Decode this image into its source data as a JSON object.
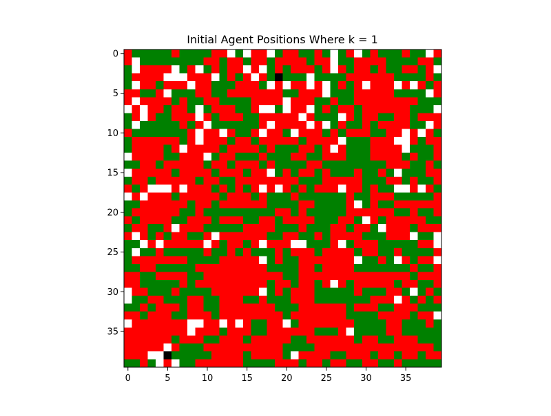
{
  "chart_data": {
    "type": "heatmap",
    "title": "Initial Agent Positions Where k = 1",
    "xlabel": "",
    "ylabel": "",
    "grid": false,
    "rows": 40,
    "cols": 40,
    "x_ticks": [
      "0",
      "5",
      "10",
      "15",
      "20",
      "25",
      "30",
      "35"
    ],
    "y_ticks": [
      "0",
      "5",
      "10",
      "15",
      "20",
      "25",
      "30",
      "35"
    ],
    "xlim": [
      -0.5,
      39.5
    ],
    "ylim": [
      39.5,
      -0.5
    ],
    "legend": "none",
    "colors": {
      "R": "#ff0000",
      "G": "#008000",
      "W": "#ffffff",
      "B": "#000000"
    },
    "grid_rows": [
      "RGGGGGRGGGGRRWGWRRWGRRGGRGWGRWGRGGGRGGWR",
      "RWGGGGGGGGRRGRRGRRGRRRRGRRWGGRRRRGGGGRRG",
      "GWRRRRWGRWGRGRRWRWGRGRRRGRWRGRRGRGGRRGRW",
      "GRRRRWWWRRRWGRGRWRGBGGGWGGGGRRRRRRGGGGRG",
      "GWRRGRRRWRRGGGRRRGWRWRRWRWGRGRWRRRWRWRGR",
      "RRGGRWGGGRRGGRRRRRRRGGRRRWGGGRRRRRGGGGWR",
      "RWRRRRGRGGRRGGGGRRRRWRRRGGRGGRRRRRRRRGGG",
      "WRWRRGRRGWGRRRGGRWWGWRRWGRGRRGRRRRRRGGGW",
      "GRWRGGRRRWRGRRRGGRRRRRWRGGGWRGRRGGRRGRRR",
      "GWGGGGGRGRWGGGGGGRWRRRRWRWGRGGRGRRRRGGWR",
      "RGGGGGGGRWRRWRGGRWRRGWRRRGRGRRRGGRRWRWRG",
      "GRRRRRRGRWRRRGRRGRRRRRGRRRRWGGGRRRWWRGRR",
      "GRRRRGRWRRRRGRRRRGRGGGRRGRWRGGGRRRRWGGGR",
      "WRRRRGGRRRWGRRGGGRGGGRRGGRRRGGGRRRRGRGGR",
      "GGRRGRRRRRGRRGRRRGRGGGGRRGGGGGGGGRRRGGRG",
      "WRRRRRGRRRRGRRRGRRWGRGRRGRGGGRGGRGWGGGRR",
      "GRRGRRRRRGRRGGRRRRRRRRGGGRRRRRGGGRRGRGGR",
      "RGRWWWRWRRRGRGRGRWRWRGRGRRRWRRGRGGWWRWRG",
      "WRWRRRGRRRRRGRRRGRGGGRGGGGGGRGGRRRGGGGGR",
      "GGRRRRRRGRRGRRRRRRGGGGRRGGGGRWGRGGRRRRRR",
      "GRRRRRRGGRGGGGGGGGGRRGRGGGGGRRRRRRGGRGGR",
      "RGRRRRGGRRRGRRRGGRRGRRRRGGGRRGWRGRRRRRGG",
      "GRRGGRWRRRGGGGGRRRRGGGRGGGRRGRRGWRRRGRRR",
      "RWRGRGRRGGRWRRRRRRGGRRGGRGRRRRGGGRRRWGGW",
      "GGWRWRRRRRWRGRRGRWRRRWWGGGRWGRRRGGGGGRRW",
      "GWGGRGGGGGRGGRGRGGGRGRRRGRRRRGRRGGRGGGGR",
      "GRRRRRRRGGGGRRRRRWGRGGRRRRRRRWGGRGWRGRRW",
      "GGRRGGGGGRRRRRRRRRGGGGRRGRRRRGGGGGGGRGGR",
      "RRGGRRRRGGRRRRRRRRRRGGRRRRRRRRRRRRRRGRRR",
      "RRGGGGGRGRRRRRRRRRGRRGRRGRWRGRRRRRGRRGGR",
      "WRRGGGRGGGGRRRRRRWGRGRRRGGGGGRGGGRRGWGRG",
      "WGGRRGGGRRGGRRRGGRGGGRRRGGGGGGGRRRWRGRGR",
      "GGRGRRRGRRGGRRRRRRRGGGRRRRRRGRRRGGRRRGGG",
      "RRGRRRGGRRRGRRRRRRRRGRRRRRRRGGGGRRRRGRRW",
      "WRRRRRRRWWRRWRWRGGRRWGRRRRRRRGGGGRRGGGRG",
      "RRRRRRRRWRRRGRRRGGRRRRRRGGGRWGGGGRRGGGGG",
      "RRRRRRGRRRGGRRRGRRRRRGGRRRRRRGRRGGRRRGGG",
      "RRRRRWRGGGRRRRRRRRRRGGGGRRRRRRRRRRRRRRRG",
      "RRRWWBGGGGGRRRRGRRRRGWRRRRGGRRRGRRGRRGRR",
      "GGRGWRWGGRRRRRRGGGGRRRGRRGRRGGRRGGRGGGGG"
    ]
  }
}
